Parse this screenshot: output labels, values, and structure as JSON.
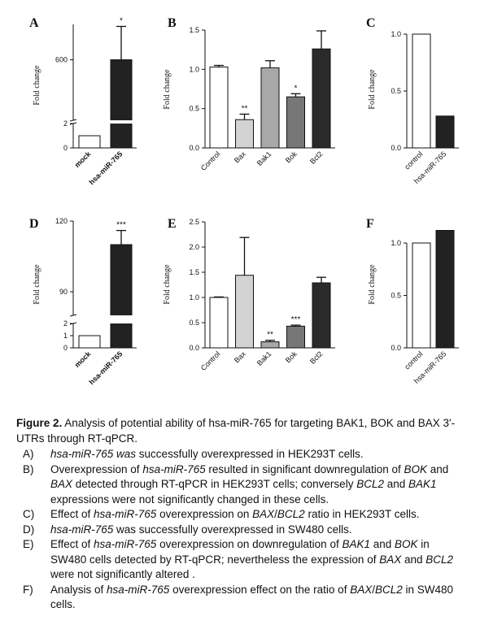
{
  "chart_data": [
    {
      "panel": "A",
      "type": "bar",
      "ylabel": "Fold change",
      "broken_axis": true,
      "yticks": [
        "0",
        "2",
        "600"
      ],
      "categories": [
        "mock",
        "hsa-miR-765"
      ],
      "values": [
        1,
        600
      ],
      "errors": [
        0,
        330
      ],
      "significance": [
        "",
        "*"
      ],
      "colors": [
        "#ffffff",
        "#222222"
      ]
    },
    {
      "panel": "B",
      "type": "bar",
      "ylabel": "Fold change",
      "ylim": [
        0,
        1.5
      ],
      "yticks": [
        "0.0",
        "0.5",
        "1.0",
        "1.5"
      ],
      "categories": [
        "Control",
        "Bax",
        "Bak1",
        "Bok",
        "Bcl2"
      ],
      "values": [
        1.03,
        0.36,
        1.02,
        0.65,
        1.26
      ],
      "errors": [
        0.02,
        0.07,
        0.09,
        0.04,
        0.23
      ],
      "significance": [
        "",
        "**",
        "",
        "*",
        ""
      ],
      "colors": [
        "#ffffff",
        "#d3d3d3",
        "#a8a8a8",
        "#777777",
        "#2a2a2a"
      ]
    },
    {
      "panel": "C",
      "type": "bar",
      "ylabel": "Fold change",
      "ylim": [
        0,
        1.0
      ],
      "yticks": [
        "0.0",
        "0.5",
        "1.0"
      ],
      "categories": [
        "control",
        "hsa-miR-765"
      ],
      "values": [
        1.0,
        0.28
      ],
      "colors": [
        "#ffffff",
        "#222222"
      ]
    },
    {
      "panel": "D",
      "type": "bar",
      "ylabel": "Fold change",
      "broken_axis": true,
      "yticks": [
        "0",
        "1",
        "2",
        "90",
        "120"
      ],
      "categories": [
        "mock",
        "hsa-miR-765"
      ],
      "values": [
        1,
        110
      ],
      "errors": [
        0,
        6
      ],
      "significance": [
        "",
        "***"
      ],
      "colors": [
        "#ffffff",
        "#222222"
      ]
    },
    {
      "panel": "E",
      "type": "bar",
      "ylabel": "Fold change",
      "ylim": [
        0,
        2.5
      ],
      "yticks": [
        "0.0",
        "0.5",
        "1.0",
        "1.5",
        "2.0",
        "2.5"
      ],
      "categories": [
        "Control",
        "Bax",
        "Bak1",
        "Bok",
        "Bcl2"
      ],
      "values": [
        1.0,
        1.44,
        0.12,
        0.43,
        1.29
      ],
      "errors": [
        0.01,
        0.75,
        0.03,
        0.02,
        0.11
      ],
      "significance": [
        "",
        "",
        "**",
        "***",
        ""
      ],
      "colors": [
        "#ffffff",
        "#d3d3d3",
        "#a8a8a8",
        "#777777",
        "#2a2a2a"
      ]
    },
    {
      "panel": "F",
      "type": "bar",
      "ylabel": "Fold change",
      "ylim": [
        0,
        1.0
      ],
      "yticks": [
        "0.0",
        "0.5",
        "1.0"
      ],
      "categories": [
        "control",
        "hsa-miR-765"
      ],
      "values": [
        1.0,
        1.12
      ],
      "colors": [
        "#ffffff",
        "#222222"
      ]
    }
  ],
  "caption": {
    "label": "Figure 2.",
    "text": "Analysis of potential ability of hsa-miR-765 for targeting BAK1, BOK and BAX 3'-UTRs through RT-qPCR.",
    "items": [
      {
        "letter": "A)",
        "parts": [
          {
            "t": "hsa-miR-765 was",
            "i": true
          },
          {
            "t": " successfully overexpressed in HEK293T cells."
          }
        ]
      },
      {
        "letter": "B)",
        "parts": [
          {
            "t": "Overexpression of "
          },
          {
            "t": "hsa-miR-765",
            "i": true
          },
          {
            "t": " resulted in significant downregulation of "
          },
          {
            "t": "BOK",
            "i": true
          },
          {
            "t": " and "
          },
          {
            "t": "BAX",
            "i": true
          },
          {
            "t": " detected through RT-qPCR in HEK293T cells; conversely "
          },
          {
            "t": "BCL2",
            "i": true
          },
          {
            "t": " and "
          },
          {
            "t": "BAK1",
            "i": true
          },
          {
            "t": " expressions were not significantly changed in these cells."
          }
        ]
      },
      {
        "letter": "C)",
        "parts": [
          {
            "t": "Effect of "
          },
          {
            "t": "hsa-miR-765",
            "i": true
          },
          {
            "t": " overexpression on "
          },
          {
            "t": "BAX",
            "i": true
          },
          {
            "t": "/"
          },
          {
            "t": "BCL2",
            "i": true
          },
          {
            "t": " ratio in HEK293T cells."
          }
        ]
      },
      {
        "letter": "D)",
        "parts": [
          {
            "t": "hsa-miR-765",
            "i": true
          },
          {
            "t": " was successfully overexpressed in SW480 cells."
          }
        ]
      },
      {
        "letter": "E)",
        "parts": [
          {
            "t": "Effect of "
          },
          {
            "t": "hsa-miR-765",
            "i": true
          },
          {
            "t": " overexpression on downregulation of "
          },
          {
            "t": "BAK1",
            "i": true
          },
          {
            "t": " and "
          },
          {
            "t": "BOK",
            "i": true
          },
          {
            "t": " in SW480 cells detected by RT-qPCR; nevertheless the expression of "
          },
          {
            "t": "BAX",
            "i": true
          },
          {
            "t": " and "
          },
          {
            "t": "BCL2",
            "i": true
          },
          {
            "t": " were not significantly altered ."
          }
        ]
      },
      {
        "letter": "F)",
        "parts": [
          {
            "t": "Analysis of "
          },
          {
            "t": "hsa-miR-765",
            "i": true
          },
          {
            "t": " overexpression effect on the ratio of "
          },
          {
            "t": "BAX",
            "i": true
          },
          {
            "t": "/"
          },
          {
            "t": "BCL2",
            "i": true
          },
          {
            "t": " in SW480 cells."
          }
        ]
      }
    ]
  }
}
